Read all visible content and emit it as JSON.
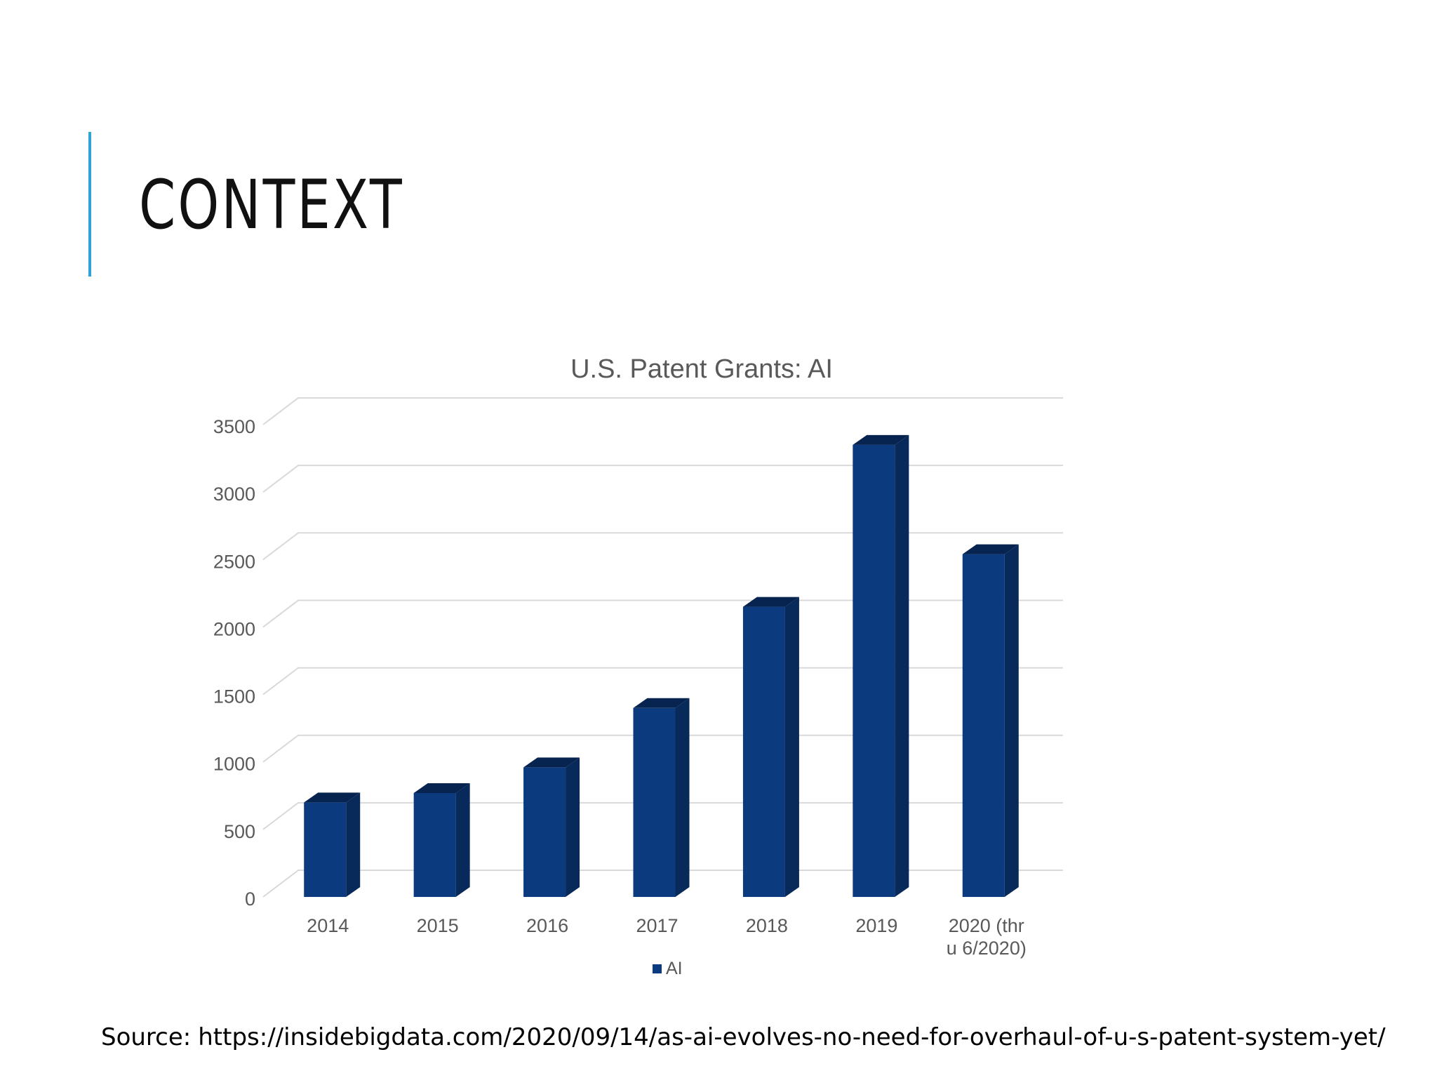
{
  "slide": {
    "title": "CONTEXT",
    "source_label": "Source:",
    "source_url": "https://insidebigdata.com/2020/09/14/as-ai-evolves-no-need-for-overhaul-of-u-s-patent-system-yet/"
  },
  "colors": {
    "accent_line": "#2aa6d6",
    "bar_front": "#0b3a7e",
    "bar_side": "#082a5a",
    "bar_top": "#06244f",
    "grid": "#d9d9d9",
    "axis_text": "#595959",
    "title_text": "#595959"
  },
  "chart_data": {
    "type": "bar",
    "style": "3d-column",
    "title": "U.S. Patent Grants: AI",
    "xlabel": "",
    "ylabel": "",
    "categories": [
      "2014",
      "2015",
      "2016",
      "2017",
      "2018",
      "2019",
      "2020 (thru 6/2020)"
    ],
    "series": [
      {
        "name": "AI",
        "values": [
          700,
          770,
          960,
          1400,
          2150,
          3350,
          2540
        ]
      }
    ],
    "ylim": [
      0,
      3500
    ],
    "yticks": [
      0,
      500,
      1000,
      1500,
      2000,
      2500,
      3000,
      3500
    ],
    "grid": true,
    "legend": "bottom"
  }
}
